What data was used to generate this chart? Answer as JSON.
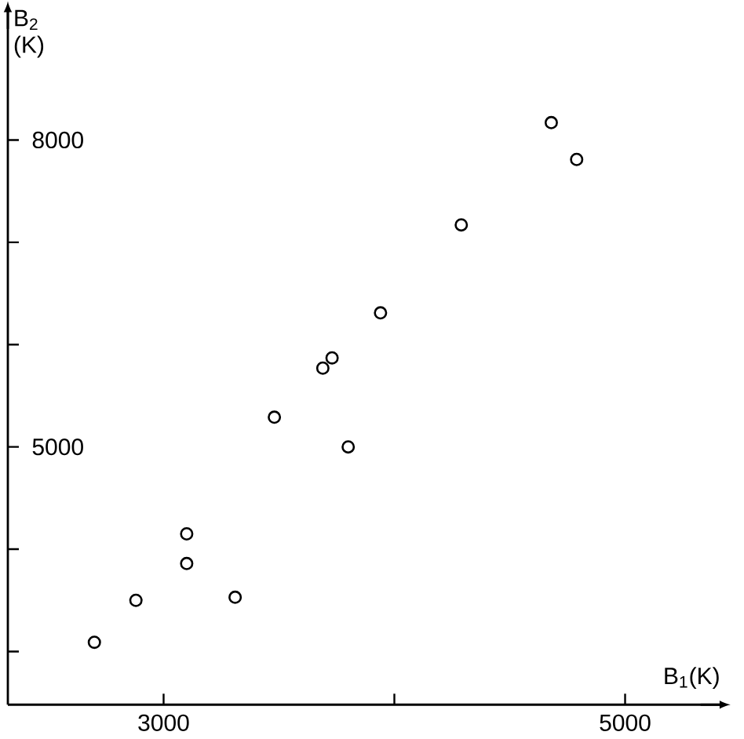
{
  "chart_data": {
    "type": "scatter",
    "xlabel": "B$_{1}$(K)",
    "ylabel": "B$_{2}$ (K)",
    "x": [
      2700,
      2880,
      3100,
      3100,
      3310,
      3480,
      3690,
      3730,
      3800,
      3940,
      4290,
      4680,
      4790
    ],
    "values": [
      3090,
      3500,
      3860,
      4150,
      3530,
      5290,
      5770,
      5870,
      5000,
      6310,
      7170,
      8170,
      7810
    ],
    "color": "#000000",
    "marker": "circle",
    "xlim": [
      2325,
      5420
    ],
    "ylim": [
      2480,
      9290
    ],
    "xticks": [
      3000,
      {
        "value": 4000,
        "label": null
      },
      5000
    ],
    "yticks": [
      {
        "value": 3000,
        "label": null
      },
      {
        "value": 4000,
        "label": null
      },
      5000,
      {
        "value": 6000,
        "label": null
      },
      {
        "value": 7000,
        "label": null
      },
      8000
    ]
  }
}
